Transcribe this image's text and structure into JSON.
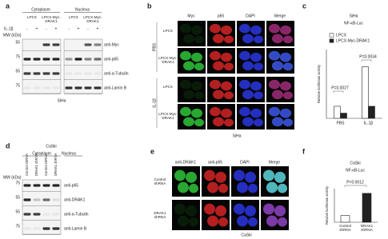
{
  "panel_a": {
    "label": "a",
    "headers": [
      "Cytoplasm",
      "Nucleus"
    ],
    "groups": [
      "LPCX",
      "LPCX-Myc-DRAK1",
      "LPCX",
      "LPCX-Myc-DRAK1"
    ],
    "treatment": "IL-1β",
    "treatment_signs": [
      "-",
      "+",
      "-",
      "+",
      "-",
      "+",
      "-",
      "+"
    ],
    "mw_label": "MW (kDa)",
    "markers": [
      55,
      75,
      55,
      75
    ],
    "antibodies": [
      "anti-Myc",
      "anti-p65",
      "anti-α-Tubulin",
      "anti-Lamin B"
    ],
    "cell_line": "SiHa"
  },
  "panel_b": {
    "label": "b",
    "columns": [
      "Myc",
      "p65",
      "DAPI",
      "Merge"
    ],
    "conditions": [
      "PBS",
      "IL-1β"
    ],
    "rows": [
      "LPCX",
      "LPCX-Myc-DRAK1"
    ],
    "cell_line": "SiHa"
  },
  "panel_c": {
    "label": "c"
  },
  "panel_d": {
    "label": "d",
    "cell_line": "CaSki",
    "headers": [
      "Cytoplasm",
      "Nucleus"
    ],
    "lanes": [
      "Control shRNA",
      "DRAK1 shRNA",
      "Control shRNA",
      "DRAK1 shRNA"
    ],
    "mw_label": "MW (kDa)",
    "markers": [
      75,
      55,
      55,
      75
    ],
    "antibodies": [
      "anti-p65",
      "anti-DRAK1",
      "anti-α-Tubulin",
      "anti-Lamin B"
    ]
  },
  "panel_e": {
    "label": "e",
    "columns": [
      "anti-DRAK1",
      "anti-p65",
      "DAPI",
      "Merge"
    ],
    "rows": [
      "Control shRNA",
      "DRAK1 shRNA"
    ],
    "cell_line": "CaSki"
  },
  "panel_f": {
    "label": "f"
  },
  "chart_data": [
    {
      "type": "bar",
      "title": "SiHa",
      "subtitle": "NF-κB-Luc",
      "y_label": "Relative luciferase activity",
      "categories": [
        "PBS",
        "IL-1β"
      ],
      "series": [
        {
          "name": "LPCX",
          "color": "#ffffff",
          "values": [
            0.7,
            3.0
          ]
        },
        {
          "name": "LPCX-Myc-DRAK1",
          "color": "#222222",
          "values": [
            0.3,
            0.7
          ]
        }
      ],
      "ylim": [
        0,
        4
      ],
      "annotations": [
        "P=0.0027",
        "P=0.0034"
      ]
    },
    {
      "type": "bar",
      "title": "CaSki",
      "subtitle": "NF-κB-Luc",
      "y_label": "Relative luciferase activity",
      "categories": [
        "Control shRNA",
        "DRAK1 shRNA"
      ],
      "values": [
        1.0,
        4.3
      ],
      "colors": [
        "#ffffff",
        "#222222"
      ],
      "ylim": [
        0,
        5
      ],
      "annotations": [
        "P=0.0012"
      ]
    }
  ]
}
